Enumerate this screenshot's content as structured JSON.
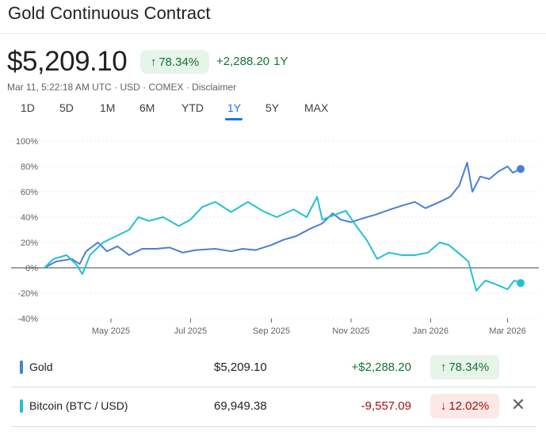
{
  "header": {
    "title": "Gold Continuous Contract",
    "price": "$5,209.10",
    "percent_change": "78.34%",
    "abs_change": "+2,288.20",
    "span": "1Y",
    "meta": "Mar 11, 5:22:18 AM UTC · USD · COMEX · Disclaimer"
  },
  "tabs": [
    {
      "label": "1D"
    },
    {
      "label": "5D"
    },
    {
      "label": "1M"
    },
    {
      "label": "6M"
    },
    {
      "label": "YTD"
    },
    {
      "label": "1Y"
    },
    {
      "label": "5Y"
    },
    {
      "label": "MAX"
    }
  ],
  "active_tab": "1Y",
  "colors": {
    "gold_series": "#4a7fd6",
    "bitcoin_series": "#23c0d4",
    "positive": "#137333",
    "negative": "#a50e0e",
    "accent": "#1a73e8"
  },
  "chart_data": {
    "type": "line",
    "x_ticks": [
      "May 2025",
      "Jul 2025",
      "Sep 2025",
      "Nov 2025",
      "Jan 2026",
      "Mar 2026"
    ],
    "y_ticks": [
      "100%",
      "80%",
      "60%",
      "40%",
      "20%",
      "0%",
      "-20%",
      "-40%"
    ],
    "ylim": [
      -40,
      100
    ],
    "x_range": [
      "2025-03-11",
      "2026-03-11"
    ],
    "series": [
      {
        "name": "Gold",
        "color": "#4a7fd6",
        "points": [
          [
            "2025-03-11",
            0
          ],
          [
            "2025-03-20",
            5
          ],
          [
            "2025-04-01",
            7
          ],
          [
            "2025-04-07",
            3
          ],
          [
            "2025-04-12",
            13
          ],
          [
            "2025-04-21",
            20
          ],
          [
            "2025-04-28",
            13
          ],
          [
            "2025-05-06",
            17
          ],
          [
            "2025-05-15",
            10
          ],
          [
            "2025-05-25",
            15
          ],
          [
            "2025-06-05",
            15
          ],
          [
            "2025-06-15",
            16
          ],
          [
            "2025-06-25",
            12
          ],
          [
            "2025-07-05",
            14
          ],
          [
            "2025-07-20",
            15
          ],
          [
            "2025-08-01",
            13
          ],
          [
            "2025-08-10",
            15
          ],
          [
            "2025-08-20",
            14
          ],
          [
            "2025-09-01",
            18
          ],
          [
            "2025-09-10",
            22
          ],
          [
            "2025-09-20",
            25
          ],
          [
            "2025-10-01",
            31
          ],
          [
            "2025-10-10",
            35
          ],
          [
            "2025-10-18",
            43
          ],
          [
            "2025-10-24",
            38
          ],
          [
            "2025-11-01",
            36
          ],
          [
            "2025-11-10",
            39
          ],
          [
            "2025-11-20",
            42
          ],
          [
            "2025-12-01",
            46
          ],
          [
            "2025-12-10",
            49
          ],
          [
            "2025-12-20",
            52
          ],
          [
            "2025-12-28",
            47
          ],
          [
            "2026-01-08",
            52
          ],
          [
            "2026-01-16",
            56
          ],
          [
            "2026-01-23",
            65
          ],
          [
            "2026-01-29",
            83
          ],
          [
            "2026-02-02",
            60
          ],
          [
            "2026-02-08",
            72
          ],
          [
            "2026-02-15",
            70
          ],
          [
            "2026-02-22",
            76
          ],
          [
            "2026-03-01",
            80
          ],
          [
            "2026-03-05",
            75
          ],
          [
            "2026-03-11",
            78
          ]
        ]
      },
      {
        "name": "Bitcoin (BTC / USD)",
        "color": "#23c0d4",
        "points": [
          [
            "2025-03-11",
            0
          ],
          [
            "2025-03-18",
            7
          ],
          [
            "2025-03-28",
            10
          ],
          [
            "2025-04-05",
            2
          ],
          [
            "2025-04-09",
            -5
          ],
          [
            "2025-04-15",
            10
          ],
          [
            "2025-04-25",
            20
          ],
          [
            "2025-05-05",
            25
          ],
          [
            "2025-05-15",
            30
          ],
          [
            "2025-05-22",
            40
          ],
          [
            "2025-05-30",
            37
          ],
          [
            "2025-06-10",
            40
          ],
          [
            "2025-06-22",
            33
          ],
          [
            "2025-07-01",
            38
          ],
          [
            "2025-07-10",
            48
          ],
          [
            "2025-07-20",
            52
          ],
          [
            "2025-08-01",
            44
          ],
          [
            "2025-08-14",
            52
          ],
          [
            "2025-08-25",
            45
          ],
          [
            "2025-09-05",
            40
          ],
          [
            "2025-09-18",
            46
          ],
          [
            "2025-09-28",
            40
          ],
          [
            "2025-10-06",
            56
          ],
          [
            "2025-10-10",
            38
          ],
          [
            "2025-10-20",
            42
          ],
          [
            "2025-10-28",
            45
          ],
          [
            "2025-11-05",
            33
          ],
          [
            "2025-11-13",
            22
          ],
          [
            "2025-11-21",
            7
          ],
          [
            "2025-11-30",
            12
          ],
          [
            "2025-12-10",
            10
          ],
          [
            "2025-12-20",
            10
          ],
          [
            "2025-12-30",
            12
          ],
          [
            "2026-01-08",
            20
          ],
          [
            "2026-01-15",
            18
          ],
          [
            "2026-01-22",
            12
          ],
          [
            "2026-01-30",
            5
          ],
          [
            "2026-02-05",
            -18
          ],
          [
            "2026-02-12",
            -10
          ],
          [
            "2026-02-20",
            -13
          ],
          [
            "2026-03-01",
            -17
          ],
          [
            "2026-03-06",
            -10
          ],
          [
            "2026-03-11",
            -12
          ]
        ]
      }
    ]
  },
  "legend_rows": [
    {
      "name": "Gold",
      "price": "$5,209.10",
      "change": "+$2,288.20",
      "percent": "78.34%",
      "arrow": "↑",
      "color": "#4a7fd6"
    },
    {
      "name": "Bitcoin (BTC / USD)",
      "price": "69,949.38",
      "change": "-9,557.09",
      "percent": "12.02%",
      "arrow": "↓",
      "color": "#23c0d4"
    }
  ],
  "close_icon": "close-icon"
}
